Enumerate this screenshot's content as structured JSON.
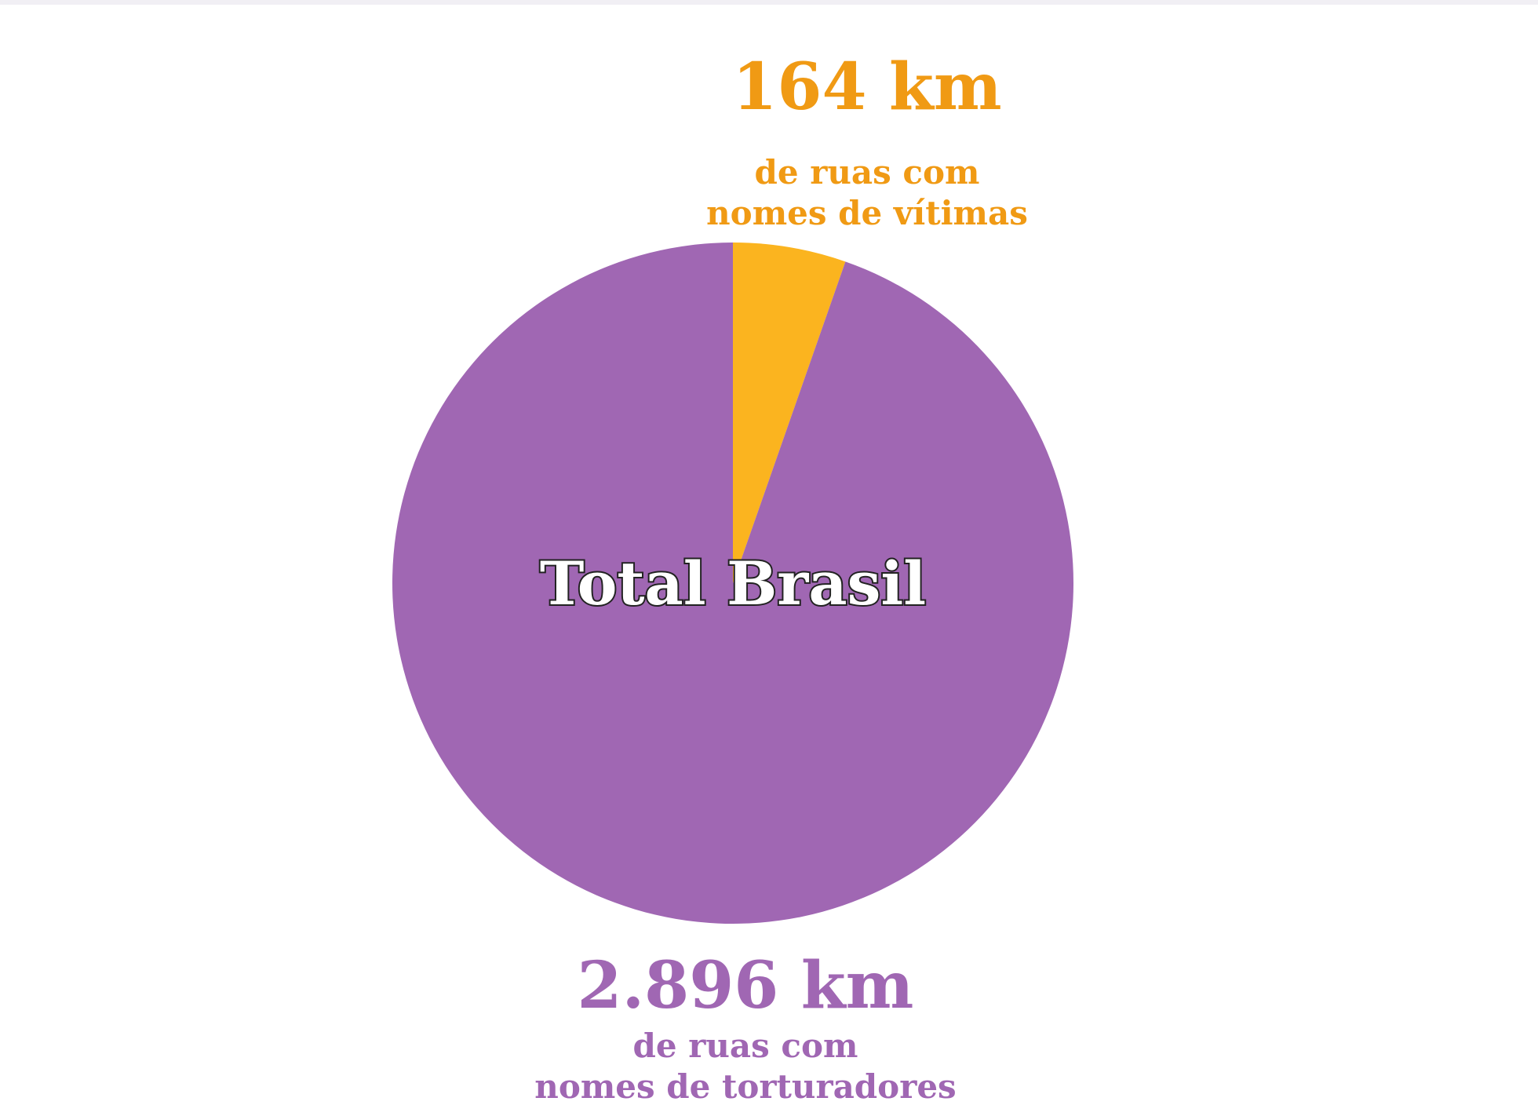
{
  "chart_data": {
    "type": "pie",
    "center_label": "Total Brasil",
    "slices": [
      {
        "value_label": "164 km",
        "value": 164,
        "unit": "km",
        "lines": [
          "de ruas com",
          "nomes de vítimas"
        ],
        "color": "#fbb41f"
      },
      {
        "value_label": "2.896 km",
        "value": 2896,
        "unit": "km",
        "lines": [
          "de ruas com",
          "nomes de torturadores"
        ],
        "color": "#a067b3"
      }
    ]
  },
  "colors": {
    "victims_text": "#f09a14",
    "torturers_text": "#a067b3",
    "background": "#ffffff"
  }
}
